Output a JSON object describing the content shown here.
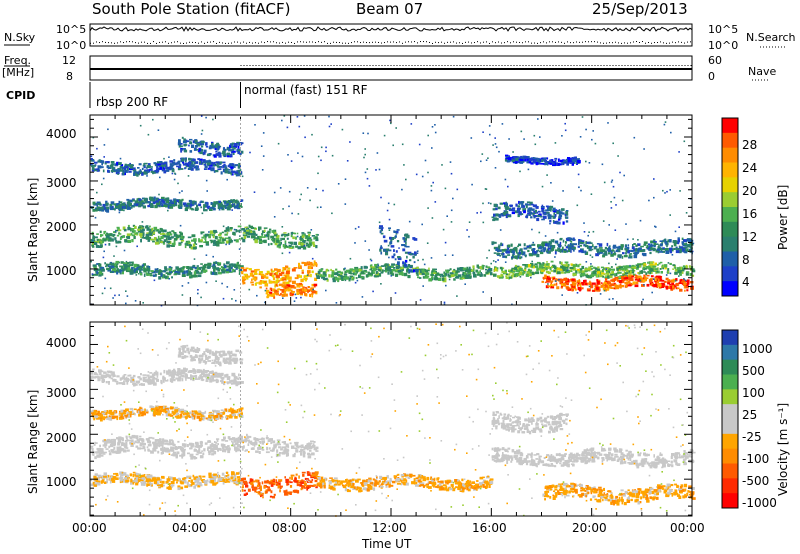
{
  "header": {
    "station": "South Pole Station (fitACF)",
    "beam": "Beam 07",
    "date": "25/Sep/2013"
  },
  "top_panels": {
    "nsky_label": "N.Sky",
    "nsky_ticks": [
      "10^5",
      "10^0"
    ],
    "nsearch_label": "N.Search",
    "nsearch_ticks": [
      "10^5",
      "10^0"
    ],
    "freq_label_1": "Freq.",
    "freq_label_2": "[MHz]",
    "freq_ticks": [
      "12",
      "8"
    ],
    "nave_label": "Nave",
    "nave_ticks": [
      "60",
      "0"
    ],
    "cpid_label": "CPID",
    "cpid_segments": [
      {
        "name": "rbsp 200 RF",
        "start_hour": 0,
        "end_hour": 6
      },
      {
        "name": "normal (fast) 151 RF",
        "start_hour": 6,
        "end_hour": 24
      }
    ]
  },
  "colorbars": {
    "power": {
      "title": "Power [dB]",
      "ticks": [
        "28",
        "24",
        "20",
        "16",
        "12",
        "8",
        "4"
      ],
      "colors_top_to_bottom": [
        "#ff0000",
        "#ff5a00",
        "#ff8c00",
        "#ffb400",
        "#e6d200",
        "#9acd32",
        "#4caf50",
        "#2e8b57",
        "#2a7f6e",
        "#1f5fa8",
        "#1e40c8",
        "#0000ff"
      ]
    },
    "velocity": {
      "title": "Velocity [m s⁻¹]",
      "ticks": [
        "1000",
        "500",
        "100",
        "25",
        "-25",
        "-100",
        "-500",
        "-1000"
      ],
      "colors_top_to_bottom": [
        "#1f3fb0",
        "#2e78a8",
        "#2e8b57",
        "#4caf50",
        "#9acd32",
        "#c8c8c8",
        "#c8c8c8",
        "#ffa500",
        "#ff8c00",
        "#ff5a00",
        "#ff2a00",
        "#ff0000"
      ]
    }
  },
  "axes": {
    "ylabel": "Slant Range [km]",
    "xlabel": "Time UT",
    "yticks": [
      "1000",
      "2000",
      "3000",
      "4000"
    ],
    "xticks": [
      "00:00",
      "04:00",
      "08:00",
      "12:00",
      "16:00",
      "20:00",
      "00:00"
    ]
  },
  "chart_data": [
    {
      "type": "heatmap",
      "title": "Power [dB]",
      "xlabel": "",
      "ylabel": "Slant Range [km]",
      "x_unit": "hours UT",
      "xlim": [
        0,
        24
      ],
      "ylim": [
        180,
        4500
      ],
      "zlim": [
        0,
        30
      ],
      "bands": [
        {
          "start_hour": 0,
          "end_hour": 6,
          "range_km": 3350,
          "width_km": 250,
          "power_db": 6
        },
        {
          "start_hour": 3.5,
          "end_hour": 6,
          "range_km": 3800,
          "width_km": 300,
          "power_db": 6
        },
        {
          "start_hour": 0,
          "end_hour": 6,
          "range_km": 2500,
          "width_km": 200,
          "power_db": 8
        },
        {
          "start_hour": 0,
          "end_hour": 9,
          "range_km": 1750,
          "width_km": 350,
          "power_db": 12
        },
        {
          "start_hour": 0,
          "end_hour": 6,
          "range_km": 1000,
          "width_km": 250,
          "power_db": 10
        },
        {
          "start_hour": 6,
          "end_hour": 9,
          "range_km": 900,
          "width_km": 400,
          "power_db": 22
        },
        {
          "start_hour": 7,
          "end_hour": 9,
          "range_km": 500,
          "width_km": 250,
          "power_db": 24
        },
        {
          "start_hour": 9,
          "end_hour": 16,
          "range_km": 950,
          "width_km": 250,
          "power_db": 12
        },
        {
          "start_hour": 11.5,
          "end_hour": 13,
          "range_km": 1500,
          "width_km": 800,
          "power_db": 6
        },
        {
          "start_hour": 16,
          "end_hour": 24,
          "range_km": 1500,
          "width_km": 300,
          "power_db": 8
        },
        {
          "start_hour": 16,
          "end_hour": 24,
          "range_km": 1000,
          "width_km": 250,
          "power_db": 14
        },
        {
          "start_hour": 18,
          "end_hour": 24,
          "range_km": 700,
          "width_km": 250,
          "power_db": 26
        },
        {
          "start_hour": 16,
          "end_hour": 19,
          "range_km": 2300,
          "width_km": 350,
          "power_db": 6
        },
        {
          "start_hour": 16.5,
          "end_hour": 19.5,
          "range_km": 3500,
          "width_km": 80,
          "power_db": 4
        }
      ]
    },
    {
      "type": "heatmap",
      "title": "Velocity [m s-1]",
      "xlabel": "Time UT",
      "ylabel": "Slant Range [km]",
      "x_unit": "hours UT",
      "xlim": [
        0,
        24
      ],
      "ylim": [
        180,
        4500
      ],
      "bands": [
        {
          "start_hour": 0,
          "end_hour": 6,
          "range_km": 3300,
          "width_km": 250,
          "velocity": 0
        },
        {
          "start_hour": 3.5,
          "end_hour": 6,
          "range_km": 3800,
          "width_km": 300,
          "velocity": 0
        },
        {
          "start_hour": 0,
          "end_hour": 6,
          "range_km": 2500,
          "width_km": 200,
          "velocity": -300
        },
        {
          "start_hour": 0,
          "end_hour": 9,
          "range_km": 1750,
          "width_km": 350,
          "velocity": 0
        },
        {
          "start_hour": 0,
          "end_hour": 6,
          "range_km": 1000,
          "width_km": 250,
          "velocity": -200
        },
        {
          "start_hour": 6,
          "end_hour": 9,
          "range_km": 900,
          "width_km": 400,
          "velocity": -700
        },
        {
          "start_hour": 9,
          "end_hour": 16,
          "range_km": 950,
          "width_km": 250,
          "velocity": -300
        },
        {
          "start_hour": 16,
          "end_hour": 24,
          "range_km": 1500,
          "width_km": 300,
          "velocity": 0
        },
        {
          "start_hour": 16,
          "end_hour": 19,
          "range_km": 2300,
          "width_km": 350,
          "velocity": 0
        },
        {
          "start_hour": 18,
          "end_hour": 24,
          "range_km": 700,
          "width_km": 300,
          "velocity": -300
        }
      ]
    }
  ]
}
